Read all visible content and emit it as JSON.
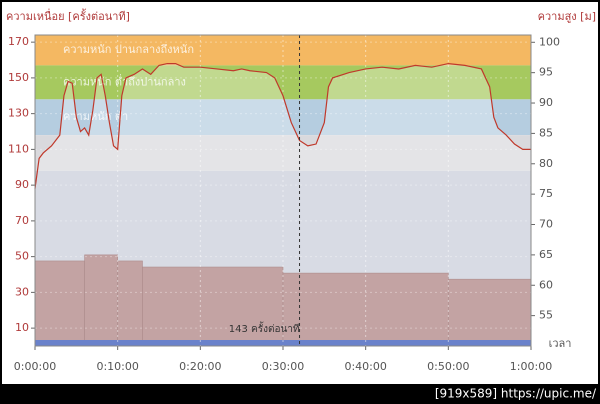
{
  "chart_data": {
    "type": "line",
    "y_label": "ความเหนื่อย [ครั้งต่อนาที]",
    "y2_label": "ความสูง [ม]",
    "x_label": "เวลา",
    "annotation": "143 ครั้งต่อนาที",
    "cursor_x": 32,
    "watermark": "[919x589] https://upic.me/",
    "xlim": [
      0,
      60
    ],
    "xticks": [
      {
        "value": 0,
        "label": "0:00:00"
      },
      {
        "value": 10,
        "label": "0:10:00"
      },
      {
        "value": 20,
        "label": "0:20:00"
      },
      {
        "value": 30,
        "label": "0:30:00"
      },
      {
        "value": 40,
        "label": "0:40:00"
      },
      {
        "value": 50,
        "label": "0:50:00"
      },
      {
        "value": 60,
        "label": "1:00:00"
      }
    ],
    "ylim": [
      0,
      174
    ],
    "yticks": [
      10,
      30,
      50,
      70,
      90,
      110,
      130,
      150,
      170
    ],
    "y2lim": [
      50,
      101.2
    ],
    "y2ticks": [
      55,
      60,
      65,
      70,
      75,
      80,
      85,
      90,
      95,
      100
    ],
    "grid": true,
    "zones": [
      {
        "lim": [
          157,
          174
        ],
        "color": "#f4b862",
        "label": "ความหนัก ปานกลางถึงหนัก"
      },
      {
        "lim": [
          138,
          157
        ],
        "color": "#a6c95f",
        "label": "ความหนัก ต่ำถึงปานกลาง"
      },
      {
        "lim": [
          118,
          138
        ],
        "color": "#b5cde0",
        "label": "ความหนัก ต่ำ"
      },
      {
        "lim": [
          98,
          118
        ],
        "color": "#d9d9dd"
      },
      {
        "lim": [
          0,
          98
        ],
        "color": "#c8ccd8"
      }
    ],
    "altitude": {
      "color": "#a97b7b",
      "bins": [
        0,
        6,
        10,
        13,
        30,
        50,
        60
      ],
      "values": [
        64,
        65,
        64,
        63,
        62,
        61
      ]
    },
    "series": [
      {
        "name": "ความเหนื่อย",
        "color": "#c0392b",
        "x": [
          0,
          0.5,
          1,
          2,
          3,
          3.5,
          4,
          4.5,
          5,
          5.5,
          6,
          6.5,
          7,
          7.5,
          8,
          8.5,
          9,
          9.5,
          10,
          10.5,
          11,
          12,
          13,
          14,
          15,
          16,
          17,
          18,
          20,
          22,
          24,
          25,
          26,
          28,
          29,
          30,
          31,
          32,
          33,
          34,
          35,
          35.5,
          36,
          38,
          40,
          42,
          44,
          46,
          48,
          50,
          52,
          54,
          55,
          55.5,
          56,
          57,
          58,
          59,
          60
        ],
        "values": [
          88,
          105,
          108,
          112,
          118,
          140,
          148,
          147,
          128,
          120,
          122,
          118,
          132,
          150,
          152,
          140,
          125,
          112,
          110,
          140,
          150,
          152,
          155,
          152,
          157,
          158,
          158,
          156,
          156,
          155,
          154,
          155,
          154,
          153,
          150,
          140,
          125,
          115,
          112,
          113,
          125,
          145,
          150,
          153,
          155,
          156,
          155,
          157,
          156,
          158,
          157,
          155,
          145,
          128,
          122,
          118,
          113,
          110,
          110
        ]
      }
    ]
  }
}
